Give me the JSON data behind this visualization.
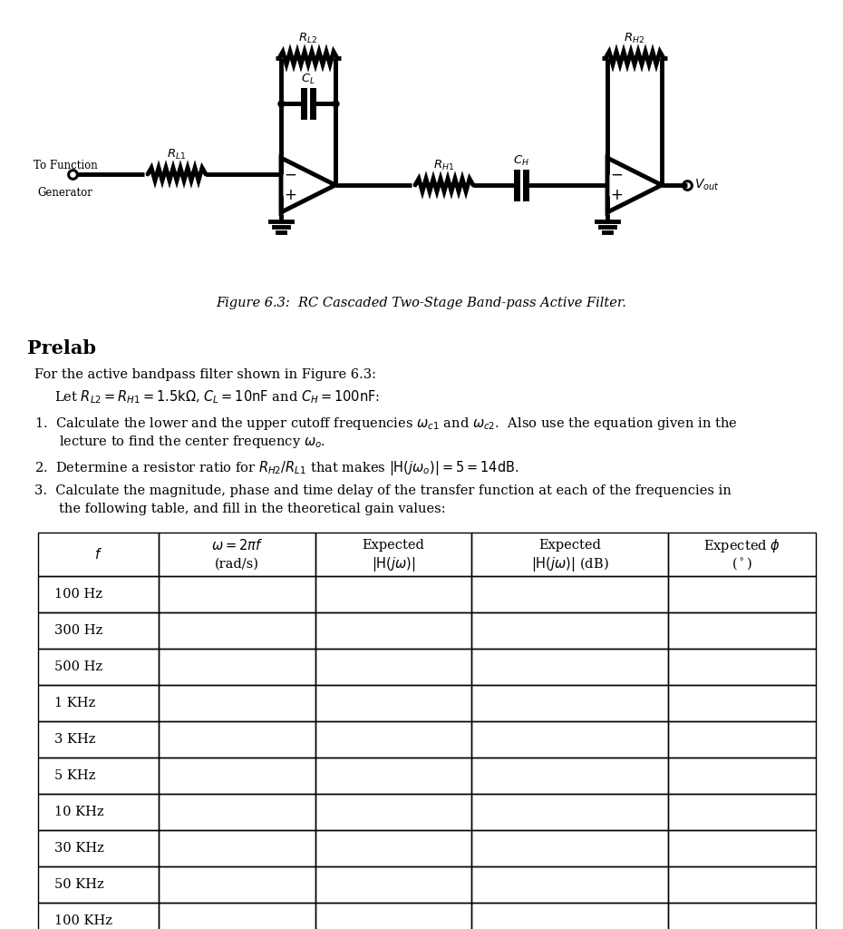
{
  "figure_caption": "Figure 6.3:  RC Cascaded Two-Stage Band-pass Active Filter.",
  "prelab_title": "Prelab",
  "row_labels": [
    "100 Hz",
    "300 Hz",
    "500 Hz",
    "1 KHz",
    "3 KHz",
    "5 KHz",
    "10 KHz",
    "30 KHz",
    "50 KHz",
    "100 KHz"
  ],
  "background_color": "#ffffff",
  "lw_wire": 2.8,
  "lw_thick": 3.5
}
